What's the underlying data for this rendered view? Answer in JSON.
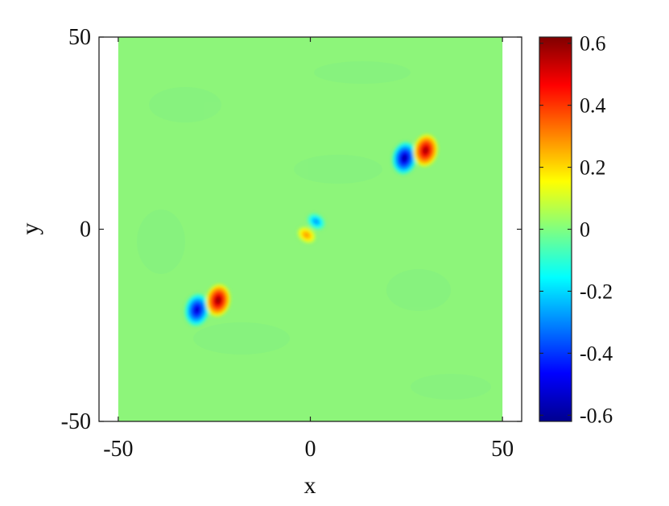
{
  "chart_data": {
    "type": "heatmap",
    "title": "",
    "xlabel": "x",
    "ylabel": "y",
    "xlim": [
      -55,
      55
    ],
    "ylim": [
      -50,
      50
    ],
    "xticks": [
      "-50",
      "0",
      "50"
    ],
    "yticks": [
      "-50",
      "0",
      "50"
    ],
    "data_extent_x": [
      -50,
      50
    ],
    "colormap": "jet",
    "clim": [
      -0.62,
      0.62
    ],
    "colorbar_ticks": [
      "-0.6",
      "-0.4",
      "-0.2",
      "0",
      "0.2",
      "0.4",
      "0.6"
    ],
    "background_value": 0.02,
    "features": [
      {
        "x": -29.5,
        "y": -21,
        "value": -0.55
      },
      {
        "x": -24,
        "y": -18.5,
        "value": 0.62
      },
      {
        "x": -1,
        "y": -1.5,
        "value": 0.3
      },
      {
        "x": 1.5,
        "y": 2,
        "value": -0.3
      },
      {
        "x": 24.5,
        "y": 18.5,
        "value": -0.6
      },
      {
        "x": 30,
        "y": 20.5,
        "value": 0.6
      }
    ]
  }
}
